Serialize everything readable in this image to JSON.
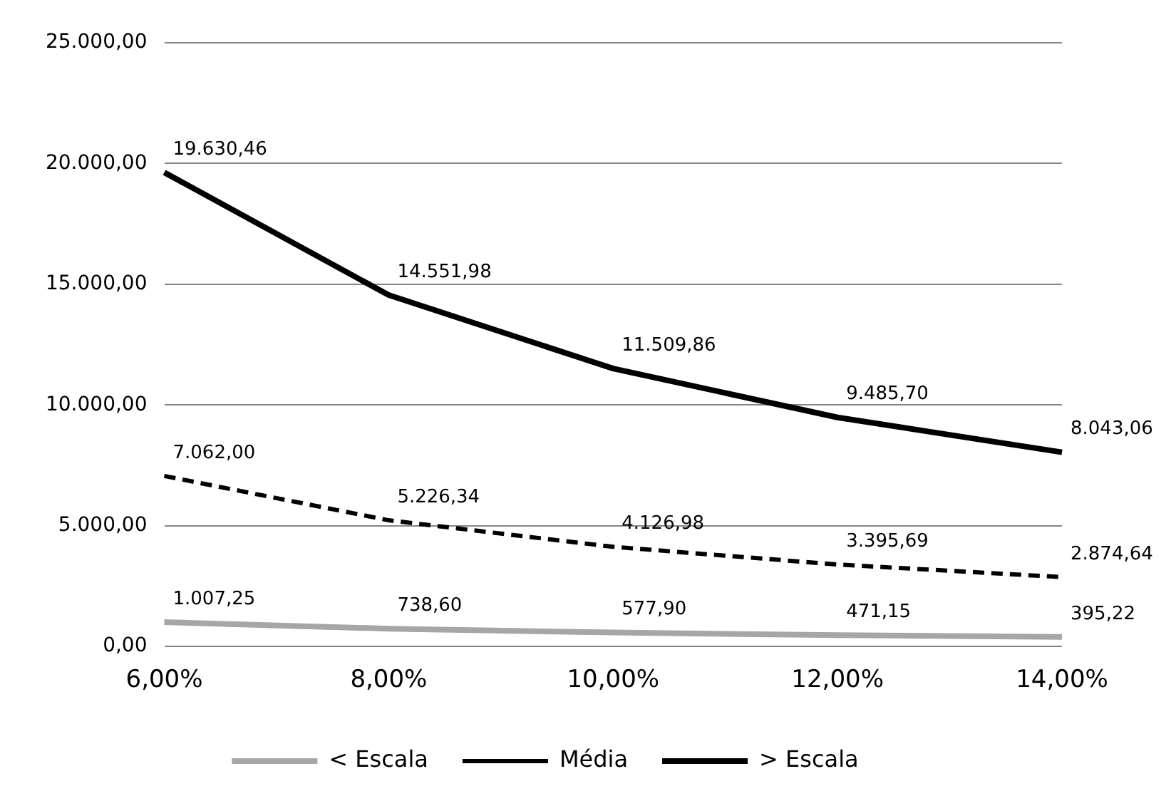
{
  "chart_data": {
    "type": "line",
    "categories": [
      "6,00%",
      "8,00%",
      "10,00%",
      "12,00%",
      "14,00%"
    ],
    "series": [
      {
        "name": "< Escala",
        "color": "#a6a6a6",
        "line_style": "solid",
        "values": [
          1007.25,
          738.6,
          577.9,
          471.15,
          395.22
        ],
        "value_labels": [
          "1.007,25",
          "738,60",
          "577,90",
          "471,15",
          "395,22"
        ]
      },
      {
        "name": "Média",
        "color": "#000000",
        "line_style": "dashed",
        "values": [
          7062.0,
          5226.34,
          4126.98,
          3395.69,
          2874.64
        ],
        "value_labels": [
          "7.062,00",
          "5.226,34",
          "4.126,98",
          "3.395,69",
          "2.874,64"
        ]
      },
      {
        "name": "> Escala",
        "color": "#000000",
        "line_style": "solid",
        "values": [
          19630.46,
          14551.98,
          11509.86,
          9485.7,
          8043.06
        ],
        "value_labels": [
          "19.630,46",
          "14.551,98",
          "11.509,86",
          "9.485,70",
          "8.043,06"
        ]
      }
    ],
    "ylim": [
      0,
      25000
    ],
    "yticks": [
      {
        "value": 0,
        "label": "0,00"
      },
      {
        "value": 5000,
        "label": "5.000,00"
      },
      {
        "value": 10000,
        "label": "10.000,00"
      },
      {
        "value": 15000,
        "label": "15.000,00"
      },
      {
        "value": 20000,
        "label": "20.000,00"
      },
      {
        "value": 25000,
        "label": "25.000,00"
      }
    ],
    "grid": "y",
    "legend": "bottom",
    "marker": "none"
  }
}
